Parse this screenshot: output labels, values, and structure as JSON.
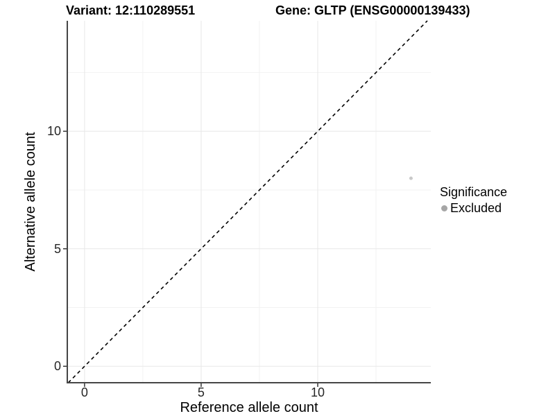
{
  "titles": {
    "variant": "Variant: 12:110289551",
    "gene": "Gene: GLTP (ENSG00000139433)"
  },
  "legend": {
    "title": "Significance",
    "items": [
      {
        "label": "Excluded",
        "key_color": "#a6a6a6"
      }
    ]
  },
  "colors": {
    "background": "#ffffff",
    "axis_line": "#454545",
    "tick_mark": "#333333",
    "grid_major": "#e7e7e7",
    "grid_minor": "#f2f2f2",
    "reference_line": "#000000",
    "point": "#c9c9c9",
    "legend_dot": "#a6a6a6"
  },
  "chart_data": {
    "type": "scatter",
    "title": "Variant: 12:110289551    Gene: GLTP (ENSG00000139433)",
    "xlabel": "Reference allele count",
    "ylabel": "Alternative allele count",
    "xlim": [
      -0.74,
      14.85
    ],
    "ylim": [
      -0.7,
      14.7
    ],
    "x_ticks": [
      0,
      5,
      10
    ],
    "y_ticks": [
      0,
      5,
      10
    ],
    "x_minor_ticks": [
      2.5,
      7.5,
      12.5
    ],
    "y_minor_ticks": [
      2.5,
      7.5,
      12.5
    ],
    "grid": true,
    "legend_position": "right",
    "series": [
      {
        "name": "Excluded",
        "color": "#c9c9c9",
        "point_radius": 2.5,
        "points": [
          {
            "x": 14,
            "y": 8
          }
        ]
      }
    ],
    "reference_line": {
      "kind": "identity",
      "style": "dashed",
      "color": "#000000",
      "dash": [
        5,
        4.5
      ],
      "width": 1.6
    }
  }
}
